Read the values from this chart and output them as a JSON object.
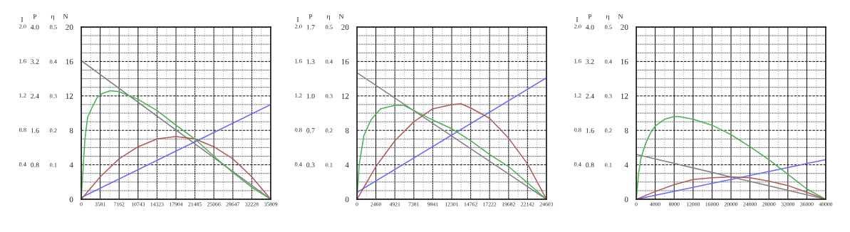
{
  "chart_data": [
    {
      "type": "line",
      "xlim": [
        0,
        35809
      ],
      "xticks": [
        0,
        3581,
        7162,
        10743,
        14323,
        17904,
        21485,
        25066,
        28647,
        32228,
        35809
      ],
      "ylabel": "N",
      "ylim": [
        0,
        20
      ],
      "yticks": [
        0,
        4,
        8,
        12,
        16,
        20
      ],
      "annotations": [
        "I",
        "2.0",
        "1.6",
        "1.2",
        "0.8",
        "0.4"
      ],
      "y2label": "P",
      "y2lim": [
        0,
        4
      ],
      "y2ticks": [
        0.8,
        1.6,
        2.4,
        3.2,
        {
          "value": 4,
          "label": "4.0"
        }
      ],
      "y3label": "η",
      "y3lim": [
        0,
        0.5
      ],
      "y3ticks": [
        0.1,
        0.2,
        0.3,
        0.4,
        0.5
      ],
      "grid": true,
      "series": [
        {
          "color": "#808080",
          "x": [
            0,
            35809
          ],
          "values": [
            16.1,
            0
          ]
        },
        {
          "color": "#6464ff",
          "x": [
            0,
            35809
          ],
          "values": [
            0.2,
            11.0
          ]
        },
        {
          "color": "#b05a5a",
          "x": [
            0,
            3581,
            7162,
            10743,
            14323,
            17904,
            21485,
            25066,
            28647,
            32228,
            35809
          ],
          "values": [
            0,
            2.6,
            4.7,
            6.1,
            7.0,
            7.3,
            7.0,
            6.1,
            4.7,
            2.6,
            0
          ]
        },
        {
          "color": "#4caf50",
          "x": [
            0,
            300,
            700,
            1200,
            2000,
            3000,
            4000,
            5500,
            7162,
            10743,
            14323,
            17904,
            21485,
            25066,
            28647,
            32228,
            35809
          ],
          "values": [
            0,
            3,
            7,
            9.5,
            10.6,
            11.8,
            12.3,
            12.6,
            12.5,
            11.6,
            10.3,
            8.6,
            7.0,
            5.0,
            3.1,
            1.4,
            0
          ]
        }
      ]
    },
    {
      "type": "line",
      "xlim": [
        0,
        24603
      ],
      "xticks": [
        0,
        2460,
        4921,
        7381,
        9841,
        12301,
        14762,
        17222,
        19682,
        22142,
        24603
      ],
      "ylabel": "N",
      "ylim": [
        0,
        20
      ],
      "yticks": [
        0,
        4,
        8,
        12,
        16,
        20
      ],
      "annotations": [
        "I",
        "2.0",
        "1.6",
        "1.2",
        "0.8",
        "0.4"
      ],
      "y2label": "P",
      "y2lim": [
        0,
        1.66
      ],
      "y2ticks": [
        {
          "value": 0.332,
          "label": "0.3"
        },
        {
          "value": 0.664,
          "label": "0.7"
        },
        {
          "value": 0.996,
          "label": "1.0"
        },
        {
          "value": 1.328,
          "label": "1.3"
        },
        {
          "value": 1.66,
          "label": "1.7"
        }
      ],
      "y3label": "η",
      "y3lim": [
        0,
        0.5
      ],
      "y3ticks": [
        0.1,
        0.2,
        0.3,
        0.4,
        0.5
      ],
      "grid": true,
      "series": [
        {
          "color": "#808080",
          "x": [
            0,
            24603
          ],
          "values": [
            14.7,
            0
          ]
        },
        {
          "color": "#6464ff",
          "x": [
            0,
            24603
          ],
          "values": [
            0.8,
            14.1
          ]
        },
        {
          "color": "#b05a5a",
          "x": [
            0,
            2460,
            4921,
            7381,
            9841,
            12301,
            13500,
            14762,
            17222,
            19682,
            22142,
            24603
          ],
          "values": [
            0,
            3.8,
            6.8,
            9.0,
            10.5,
            11.0,
            11.1,
            10.6,
            9.4,
            7.1,
            4.1,
            0
          ]
        },
        {
          "color": "#4caf50",
          "x": [
            0,
            300,
            900,
            1800,
            3050,
            4921,
            6100,
            7381,
            9841,
            12301,
            14762,
            17222,
            19682,
            22142,
            24603
          ],
          "values": [
            0,
            4.1,
            7.4,
            9.2,
            10.5,
            10.9,
            10.9,
            10.3,
            9.2,
            8.2,
            6.8,
            5.2,
            3.8,
            1.9,
            0
          ]
        }
      ]
    },
    {
      "type": "line",
      "xlim": [
        0,
        40000
      ],
      "xticks": [
        0,
        4000,
        8000,
        12000,
        16000,
        20000,
        24000,
        28000,
        32000,
        36000,
        40000
      ],
      "ylabel": "N",
      "ylim": [
        0,
        20
      ],
      "yticks": [
        0,
        4,
        8,
        12,
        16,
        20
      ],
      "annotations": [
        "I",
        "2.0",
        "1.6",
        "1.2",
        "0.8",
        "0.4"
      ],
      "y2label": "P",
      "y2lim": [
        0,
        4
      ],
      "y2ticks": [
        0.8,
        1.6,
        2.4,
        3.2,
        {
          "value": 4,
          "label": "4.0"
        }
      ],
      "y3label": "η",
      "y3lim": [
        0,
        0.5
      ],
      "y3ticks": [
        0.1,
        0.2,
        0.3,
        0.4,
        0.5
      ],
      "grid": true,
      "series": [
        {
          "color": "#808080",
          "x": [
            0,
            40000
          ],
          "values": [
            5.2,
            0
          ]
        },
        {
          "color": "#6464ff",
          "x": [
            0,
            40000
          ],
          "values": [
            0,
            4.6
          ]
        },
        {
          "color": "#b05a5a",
          "x": [
            0,
            4000,
            8000,
            12000,
            16000,
            20000,
            24000,
            28000,
            32000,
            36000,
            40000
          ],
          "values": [
            0,
            0.9,
            1.7,
            2.3,
            2.5,
            2.6,
            2.5,
            2.1,
            1.6,
            0.8,
            0
          ]
        },
        {
          "color": "#4caf50",
          "x": [
            0,
            500,
            1000,
            2000,
            3000,
            4000,
            6000,
            8000,
            9000,
            12000,
            16000,
            20000,
            24000,
            28000,
            32000,
            36000,
            40000
          ],
          "values": [
            0,
            3.0,
            4.8,
            6.5,
            7.7,
            8.5,
            9.3,
            9.6,
            9.6,
            9.3,
            8.6,
            7.5,
            6.1,
            4.6,
            2.9,
            1.2,
            0
          ]
        }
      ]
    }
  ]
}
